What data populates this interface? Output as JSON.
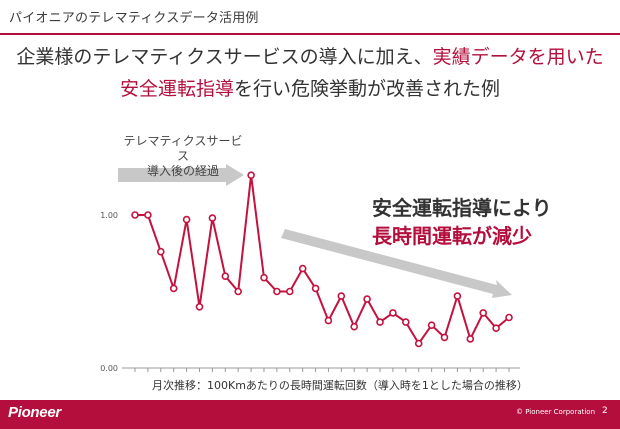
{
  "header": {
    "title": "パイオニアのテレマティクスデータ活用例"
  },
  "headline": {
    "line1_pre": "企業様のテレマティクスサービスの導入に加え、",
    "line1_em": "実績データを用いた",
    "line2_em": "安全運転指導",
    "line2_post": "を行い危険挙動が改善された例"
  },
  "annotation": {
    "intro_line1": "テレマティクスサービス",
    "intro_line2": "導入後の経過",
    "callout_line1": "安全運転指導により",
    "callout_line2": "長時間運転が減少"
  },
  "colors": {
    "accent": "#b40f3c",
    "line": "#c4123f",
    "arrow": "#c8c8c8",
    "axis": "#999999"
  },
  "chart_data": {
    "type": "line",
    "title": "",
    "xlabel": "月次推移：100Kmあたりの長時間運転回数（導入時を1とした場合の推移）",
    "ylabel": "",
    "ytick_labels": [
      "0.00",
      "1.00"
    ],
    "ylim": [
      0,
      1.0
    ],
    "grid": false,
    "series": [
      {
        "values": [
          1.0,
          1.0,
          0.76,
          0.52,
          0.97,
          0.4,
          0.98,
          0.6,
          0.5,
          1.26,
          0.59,
          0.5,
          0.5,
          0.65,
          0.52,
          0.31,
          0.47,
          0.27,
          0.45,
          0.3,
          0.36,
          0.3,
          0.16,
          0.28,
          0.2,
          0.47,
          0.19,
          0.36,
          0.26,
          0.33
        ]
      }
    ]
  }
}
